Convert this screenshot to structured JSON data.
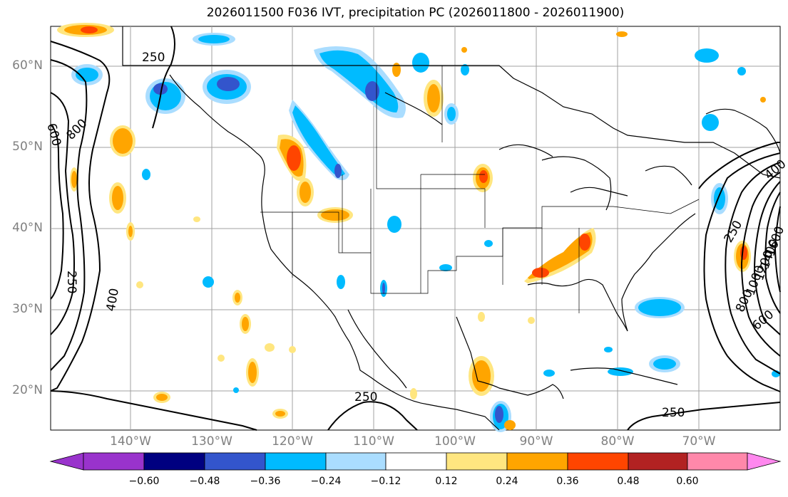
{
  "title": "2026011500 F036 IVT, precipitation PC (2026011800 - 2026011900)",
  "map": {
    "lat_labels": [
      "60°N",
      "50°N",
      "40°N",
      "30°N",
      "20°N"
    ],
    "lon_labels": [
      "140°W",
      "130°W",
      "120°W",
      "110°W",
      "100°W",
      "90°W",
      "80°W",
      "70°W"
    ],
    "lat_range": [
      15,
      65
    ],
    "lon_range": [
      -150,
      -60
    ]
  },
  "contours": {
    "ivt_labels": [
      "250",
      "600",
      "800",
      "250",
      "400",
      "250",
      "250",
      "250",
      "400",
      "600",
      "800",
      "1000",
      "1200",
      "1400",
      "1600"
    ]
  },
  "colorbar": {
    "tick_labels": [
      "−0.60",
      "−0.48",
      "−0.36",
      "−0.24",
      "−0.12",
      "0.12",
      "0.24",
      "0.36",
      "0.48",
      "0.60"
    ],
    "colors": [
      "#9933cc",
      "#000080",
      "#3355cc",
      "#00bbff",
      "#aaddff",
      "#ffffff",
      "#ffe680",
      "#ffa500",
      "#ff4500",
      "#b22222",
      "#ff88aa",
      "#ff88ee"
    ]
  }
}
